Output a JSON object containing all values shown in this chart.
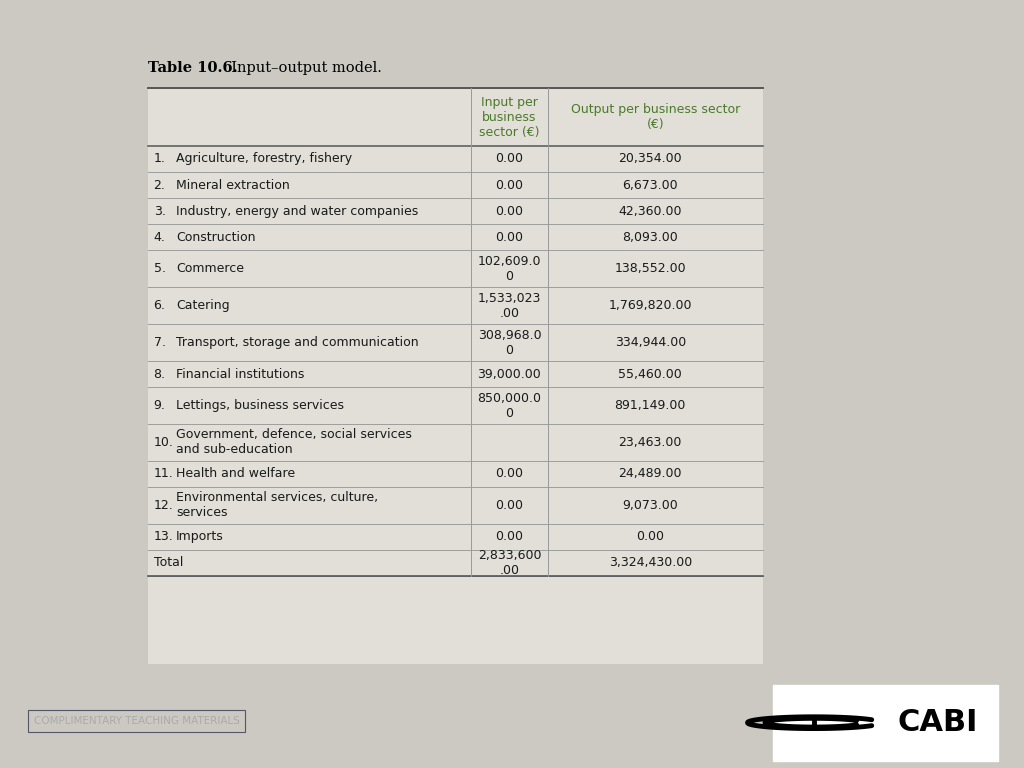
{
  "title_bold": "Table 10.6.",
  "title_normal": "  Input–output model.",
  "col_headers": [
    "Input per\nbusiness\nsector (€)",
    "Output per business sector\n(€)"
  ],
  "rows": [
    {
      "num": "1.",
      "label": "Agriculture, forestry, fishery",
      "input": "0.00",
      "output": "20,354.00"
    },
    {
      "num": "2.",
      "label": "Mineral extraction",
      "input": "0.00",
      "output": "6,673.00"
    },
    {
      "num": "3.",
      "label": "Industry, energy and water companies",
      "input": "0.00",
      "output": "42,360.00"
    },
    {
      "num": "4.",
      "label": "Construction",
      "input": "0.00",
      "output": "8,093.00"
    },
    {
      "num": "5.",
      "label": "Commerce",
      "input": "102,609.0\n0",
      "output": "138,552.00",
      "tall": true
    },
    {
      "num": "6.",
      "label": "Catering",
      "input": "1,533,023\n.00",
      "output": "1,769,820.00",
      "tall": true
    },
    {
      "num": "7.",
      "label": "Transport, storage and communication",
      "input": "308,968.0\n0",
      "output": "334,944.00",
      "tall": true
    },
    {
      "num": "8.",
      "label": "Financial institutions",
      "input": "39,000.00",
      "output": "55,460.00"
    },
    {
      "num": "9.",
      "label": "Lettings, business services",
      "input": "850,000.0\n0",
      "output": "891,149.00",
      "tall": true
    },
    {
      "num": "10.",
      "label": "Government, defence, social services\nand sub-education",
      "input": "",
      "output": "23,463.00",
      "tall": true
    },
    {
      "num": "11.",
      "label": "Health and welfare",
      "input": "0.00",
      "output": "24,489.00"
    },
    {
      "num": "12.",
      "label": "Environmental services, culture,\nservices",
      "input": "0.00",
      "output": "9,073.00",
      "tall": true
    },
    {
      "num": "13.",
      "label": "Imports",
      "input": "0.00",
      "output": "0.00"
    }
  ],
  "total_row": {
    "label": "Total",
    "input": "2,833,600\n.00",
    "output": "3,324,430.00"
  },
  "bg_color": "#ccc9c3",
  "table_bg": "#e2dfd8",
  "header_green": "#4a7a2a",
  "text_color": "#1a1a1a",
  "line_color": "#999999",
  "footer_bg": "#1e2130",
  "footer_text": "COMPLIMENTARY TEACHING MATERIALS",
  "footer_text_color": "#aaaaaa",
  "footer_border_color": "#555566"
}
